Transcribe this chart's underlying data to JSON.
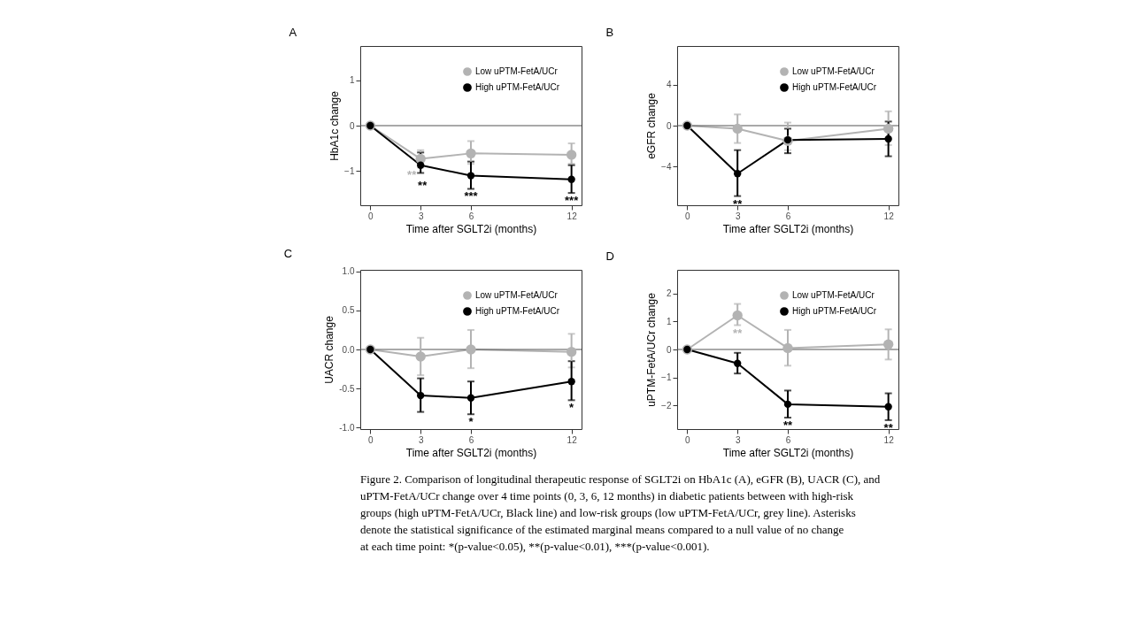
{
  "chart_data": [
    {
      "type": "line",
      "title": "A",
      "xlabel": "Time after SGLT2i (months)",
      "ylabel": "HbA1c change",
      "x": [
        0,
        3,
        6,
        12
      ],
      "xlim": [
        -0.6,
        12.6
      ],
      "xticks": [
        0,
        3,
        6,
        12
      ],
      "ylim": [
        -1.75,
        1.75
      ],
      "yticks": [
        -1,
        0,
        1
      ],
      "marker": "circle",
      "legend": "top right",
      "grid": false,
      "ref_lines": [
        {
          "axis": "y",
          "value": 0,
          "color": "#555555"
        }
      ],
      "series": [
        {
          "name": "Low uPTM-FetA/UCr",
          "color": "#b3b3b3",
          "values": [
            0,
            -0.73,
            -0.61,
            -0.64
          ],
          "errors": [
            null,
            [
              -0.92,
              -0.54
            ],
            [
              -0.84,
              -0.34
            ],
            [
              -0.84,
              -0.39
            ]
          ]
        },
        {
          "name": "High uPTM-FetA/UCr",
          "color": "#000000",
          "values": [
            0,
            -0.87,
            -1.1,
            -1.18
          ],
          "errors": [
            null,
            [
              -1.04,
              -0.59
            ],
            [
              -1.39,
              -0.79
            ],
            [
              -1.48,
              -0.87
            ]
          ]
        }
      ],
      "annotations": [
        {
          "text": "**",
          "x": 3,
          "y": -0.92
        },
        {
          "text": "**",
          "x": 3,
          "y": -1.04
        },
        {
          "text": "***",
          "x": 6,
          "y": -1.39
        },
        {
          "text": "***",
          "x": 12,
          "y": -1.48
        }
      ]
    },
    {
      "type": "line",
      "title": "B",
      "xlabel": "Time after SGLT2i (months)",
      "ylabel": "eGFR change",
      "x": [
        0,
        3,
        6,
        12
      ],
      "xlim": [
        -0.6,
        12.6
      ],
      "xticks": [
        0,
        3,
        6,
        12
      ],
      "ylim": [
        -7.8,
        7.8
      ],
      "yticks": [
        -4,
        0,
        4
      ],
      "marker": "circle",
      "legend": "top right",
      "grid": false,
      "ref_lines": [
        {
          "axis": "y",
          "value": 0,
          "color": "#555555"
        }
      ],
      "series": [
        {
          "name": "Low uPTM-FetA/UCr",
          "color": "#b3b3b3",
          "values": [
            0,
            -0.3,
            -1.5,
            -0.3
          ],
          "errors": [
            null,
            [
              -1.7,
              1.1
            ],
            [
              -2.4,
              0.3
            ],
            [
              -1.9,
              1.4
            ]
          ]
        },
        {
          "name": "High uPTM-FetA/UCr",
          "color": "#000000",
          "values": [
            0,
            -4.7,
            -1.4,
            -1.3
          ],
          "errors": [
            null,
            [
              -6.9,
              -2.4
            ],
            [
              -2.7,
              -0.3
            ],
            [
              -3.0,
              0.4
            ]
          ]
        }
      ],
      "annotations": [
        {
          "text": "**",
          "x": 3,
          "y": -6.9
        }
      ]
    },
    {
      "type": "line",
      "title": "C",
      "xlabel": "Time after SGLT2i (months)",
      "ylabel": "UACR change",
      "x": [
        0,
        3,
        6,
        12
      ],
      "xlim": [
        -0.6,
        12.6
      ],
      "xticks": [
        0,
        3,
        6,
        12
      ],
      "ylim": [
        -1.02,
        1.02
      ],
      "yticks": [
        {
          "value": -1,
          "label": "-1.0"
        },
        {
          "value": -0.5,
          "label": "-0.5"
        },
        {
          "value": 0,
          "label": "0.0"
        },
        {
          "value": 0.5,
          "label": "0.5"
        },
        {
          "value": 1,
          "label": "1.0"
        }
      ],
      "marker": "circle",
      "legend": "top right",
      "grid": false,
      "ref_lines": [
        {
          "axis": "y",
          "value": 0,
          "color": "#555555"
        }
      ],
      "series": [
        {
          "name": "Low uPTM-FetA/UCr",
          "color": "#b3b3b3",
          "values": [
            0,
            -0.09,
            0,
            -0.03
          ],
          "errors": [
            null,
            [
              -0.33,
              0.15
            ],
            [
              -0.24,
              0.25
            ],
            [
              -0.23,
              0.2
            ]
          ]
        },
        {
          "name": "High uPTM-FetA/UCr",
          "color": "#000000",
          "values": [
            0,
            -0.59,
            -0.62,
            -0.41
          ],
          "errors": [
            null,
            [
              -0.8,
              -0.37
            ],
            [
              -0.83,
              -0.41
            ],
            [
              -0.65,
              -0.15
            ]
          ]
        }
      ],
      "annotations": [
        {
          "text": "*",
          "x": 6,
          "y": -0.83
        },
        {
          "text": "*",
          "x": 12,
          "y": -0.65
        }
      ]
    },
    {
      "type": "line",
      "title": "D",
      "xlabel": "Time after SGLT2i (months)",
      "ylabel": "uPTM-FetA/UCr change",
      "x": [
        0,
        3,
        6,
        12
      ],
      "xlim": [
        -0.6,
        12.6
      ],
      "xticks": [
        0,
        3,
        6,
        12
      ],
      "ylim": [
        -2.85,
        2.85
      ],
      "yticks": [
        -2,
        -1,
        0,
        1,
        2
      ],
      "marker": "circle",
      "legend": "top right",
      "grid": false,
      "ref_lines": [
        {
          "axis": "y",
          "value": 0,
          "color": "#555555"
        }
      ],
      "series": [
        {
          "name": "Low uPTM-FetA/UCr",
          "color": "#b3b3b3",
          "values": [
            0,
            1.22,
            0.05,
            0.18
          ],
          "errors": [
            null,
            [
              0.87,
              1.63
            ],
            [
              -0.58,
              0.7
            ],
            [
              -0.36,
              0.72
            ]
          ]
        },
        {
          "name": "High uPTM-FetA/UCr",
          "color": "#000000",
          "values": [
            0,
            -0.5,
            -1.96,
            -2.05
          ],
          "errors": [
            null,
            [
              -0.86,
              -0.12
            ],
            [
              -2.44,
              -1.47
            ],
            [
              -2.53,
              -1.57
            ]
          ]
        }
      ],
      "annotations": [
        {
          "text": "**",
          "x": 3,
          "y": 0.87
        },
        {
          "text": "**",
          "x": 6,
          "y": -2.44
        },
        {
          "text": "**",
          "x": 12,
          "y": -2.53
        },
        "Figure 2. Comparison of longitudinal therapeutic response of SGLT2i on HbA1c (A), eGFR (B), UACR (C), and uPTM-FetA/UCr change over 4 time points (0, 3, 6, 12 months) in diabetic patients between with high-risk groups (high uPTM-FetA/UCr, Black line) and low-risk groups (low uPTM-FetA/UCr, grey line). Asterisks denote the statistical significance of the estimated marginal means compared to a null value of no change at each time point: *(p-value<0.05), **(p-value<0.01), ***(p-value<0.001)."
      ]
    }
  ]
}
